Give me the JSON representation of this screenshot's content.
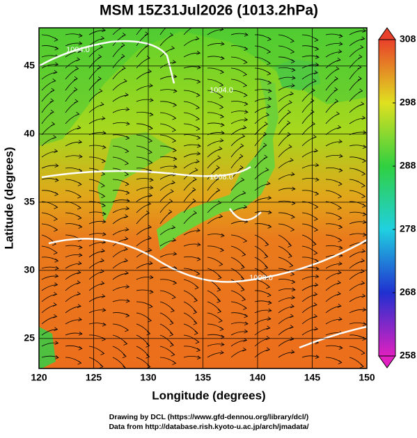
{
  "title": "MSM 15Z31Jul2026 (1013.2hPa)",
  "x_axis": {
    "label": "Longitude (degrees)",
    "range": [
      120,
      150
    ],
    "ticks": [
      120,
      125,
      130,
      135,
      140,
      145,
      150
    ]
  },
  "y_axis": {
    "label": "Latitude  (degrees)",
    "range": [
      22.8,
      47.8
    ],
    "ticks": [
      25,
      30,
      35,
      40,
      45
    ]
  },
  "colorbar": {
    "range": [
      258,
      308
    ],
    "ticks": [
      258,
      268,
      278,
      288,
      298,
      308
    ]
  },
  "contour_labels": [
    "1004.0",
    "1004.0",
    "1008.0",
    "1008.0"
  ],
  "credits": [
    "Drawing by DCL (https://www.gfd-dennou.org/library/dcl/)",
    "Data from http://database.rish.kyoto-u.ac.jp/arch/jmadata/"
  ]
}
